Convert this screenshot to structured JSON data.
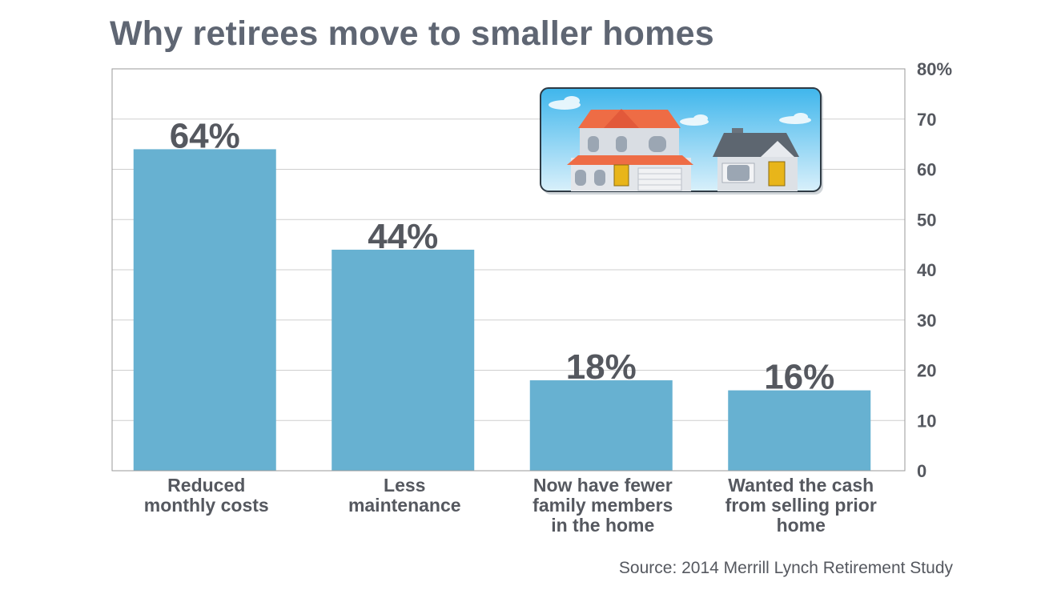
{
  "chart_data": {
    "type": "bar",
    "title": "Why retirees move to smaller homes",
    "categories": [
      [
        "Reduced",
        "monthly costs"
      ],
      [
        "Less",
        "maintenance"
      ],
      [
        "Now have fewer",
        "family members",
        "in the home"
      ],
      [
        "Wanted the cash",
        "from selling prior",
        "home"
      ]
    ],
    "values": [
      64,
      44,
      18,
      16
    ],
    "data_labels": [
      "64%",
      "44%",
      "18%",
      "16%"
    ],
    "ylim": [
      0,
      80
    ],
    "y_ticks": [
      0,
      10,
      20,
      30,
      40,
      50,
      60,
      70,
      80
    ],
    "y_tick_labels": [
      "0",
      "10",
      "20",
      "30",
      "40",
      "50",
      "60",
      "70",
      "80%"
    ],
    "y_axis_side": "right",
    "grid": true,
    "bar_color": "#67b1d1",
    "source": "Source: 2014 Merrill Lynch Retirement Study"
  },
  "illustration": {
    "icon": "houses-illustration"
  }
}
